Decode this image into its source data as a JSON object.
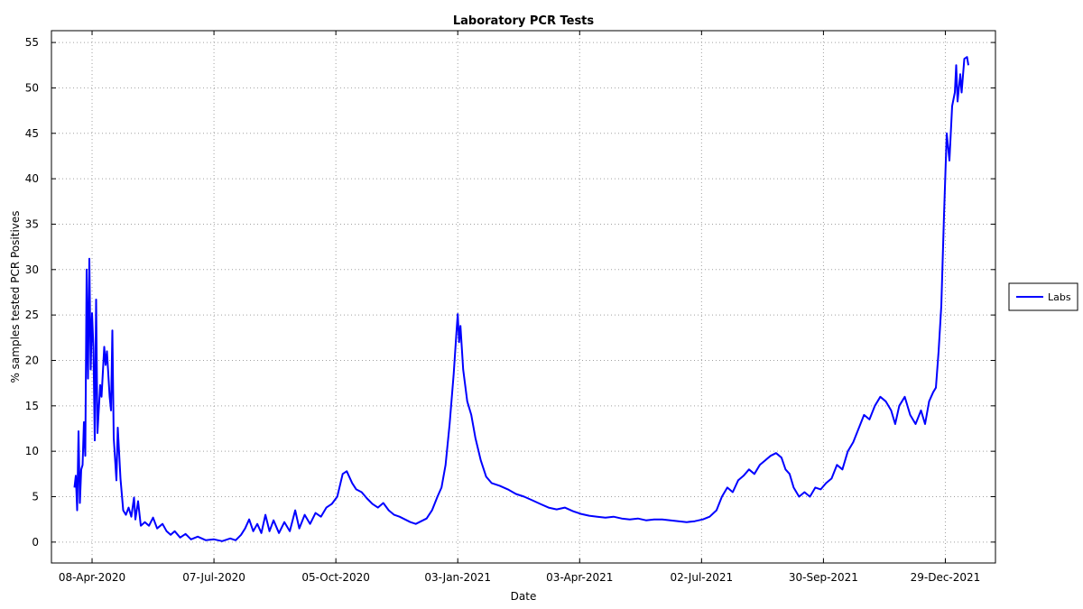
{
  "chart_data": {
    "type": "line",
    "title": "Laboratory PCR Tests",
    "xlabel": "Date",
    "ylabel": "% samples tested PCR Positives",
    "ylim": [
      -2.3,
      56.3
    ],
    "xlim": [
      "2020-03-09",
      "2022-02-04"
    ],
    "grid": true,
    "legend_placement": "right",
    "x_ticks": [
      {
        "date": "2020-04-08",
        "label": "08-Apr-2020"
      },
      {
        "date": "2020-07-07",
        "label": "07-Jul-2020"
      },
      {
        "date": "2020-10-05",
        "label": "05-Oct-2020"
      },
      {
        "date": "2021-01-03",
        "label": "03-Jan-2021"
      },
      {
        "date": "2021-04-03",
        "label": "03-Apr-2021"
      },
      {
        "date": "2021-07-02",
        "label": "02-Jul-2021"
      },
      {
        "date": "2021-09-30",
        "label": "30-Sep-2021"
      },
      {
        "date": "2021-12-29",
        "label": "29-Dec-2021"
      }
    ],
    "y_ticks": [
      0,
      5,
      10,
      15,
      20,
      25,
      30,
      35,
      40,
      45,
      50,
      55
    ],
    "series": [
      {
        "name": "Labs",
        "color": "#0000ff",
        "points": [
          [
            "2020-03-26",
            6.0
          ],
          [
            "2020-03-27",
            7.3
          ],
          [
            "2020-03-28",
            3.5
          ],
          [
            "2020-03-29",
            12.2
          ],
          [
            "2020-03-30",
            4.3
          ],
          [
            "2020-03-31",
            8.0
          ],
          [
            "2020-04-01",
            8.5
          ],
          [
            "2020-04-02",
            13.2
          ],
          [
            "2020-04-03",
            9.5
          ],
          [
            "2020-04-04",
            30.0
          ],
          [
            "2020-04-05",
            18.0
          ],
          [
            "2020-04-06",
            31.2
          ],
          [
            "2020-04-07",
            19.0
          ],
          [
            "2020-04-08",
            25.2
          ],
          [
            "2020-04-09",
            21.5
          ],
          [
            "2020-04-10",
            11.2
          ],
          [
            "2020-04-11",
            26.7
          ],
          [
            "2020-04-12",
            12.0
          ],
          [
            "2020-04-14",
            17.3
          ],
          [
            "2020-04-15",
            16.0
          ],
          [
            "2020-04-17",
            21.5
          ],
          [
            "2020-04-18",
            19.5
          ],
          [
            "2020-04-19",
            21.0
          ],
          [
            "2020-04-21",
            16.0
          ],
          [
            "2020-04-22",
            14.5
          ],
          [
            "2020-04-23",
            23.3
          ],
          [
            "2020-04-24",
            11.5
          ],
          [
            "2020-04-26",
            6.8
          ],
          [
            "2020-04-27",
            12.6
          ],
          [
            "2020-04-29",
            7.0
          ],
          [
            "2020-05-01",
            3.5
          ],
          [
            "2020-05-03",
            3.0
          ],
          [
            "2020-05-05",
            3.8
          ],
          [
            "2020-05-07",
            2.8
          ],
          [
            "2020-05-09",
            4.9
          ],
          [
            "2020-05-10",
            2.5
          ],
          [
            "2020-05-12",
            4.5
          ],
          [
            "2020-05-14",
            1.8
          ],
          [
            "2020-05-17",
            2.2
          ],
          [
            "2020-05-20",
            1.8
          ],
          [
            "2020-05-23",
            2.7
          ],
          [
            "2020-05-26",
            1.5
          ],
          [
            "2020-05-30",
            2.0
          ],
          [
            "2020-06-02",
            1.2
          ],
          [
            "2020-06-05",
            0.8
          ],
          [
            "2020-06-08",
            1.2
          ],
          [
            "2020-06-12",
            0.5
          ],
          [
            "2020-06-16",
            0.9
          ],
          [
            "2020-06-20",
            0.3
          ],
          [
            "2020-06-25",
            0.6
          ],
          [
            "2020-07-01",
            0.2
          ],
          [
            "2020-07-07",
            0.3
          ],
          [
            "2020-07-13",
            0.1
          ],
          [
            "2020-07-19",
            0.4
          ],
          [
            "2020-07-23",
            0.2
          ],
          [
            "2020-07-27",
            0.8
          ],
          [
            "2020-07-30",
            1.5
          ],
          [
            "2020-08-02",
            2.5
          ],
          [
            "2020-08-05",
            1.2
          ],
          [
            "2020-08-08",
            2.0
          ],
          [
            "2020-08-11",
            1.0
          ],
          [
            "2020-08-14",
            3.0
          ],
          [
            "2020-08-17",
            1.2
          ],
          [
            "2020-08-20",
            2.4
          ],
          [
            "2020-08-24",
            1.0
          ],
          [
            "2020-08-28",
            2.2
          ],
          [
            "2020-09-01",
            1.2
          ],
          [
            "2020-09-05",
            3.5
          ],
          [
            "2020-09-08",
            1.5
          ],
          [
            "2020-09-12",
            3.0
          ],
          [
            "2020-09-16",
            2.0
          ],
          [
            "2020-09-20",
            3.2
          ],
          [
            "2020-09-24",
            2.8
          ],
          [
            "2020-09-28",
            3.8
          ],
          [
            "2020-10-02",
            4.2
          ],
          [
            "2020-10-06",
            5.0
          ],
          [
            "2020-10-10",
            7.5
          ],
          [
            "2020-10-13",
            7.8
          ],
          [
            "2020-10-17",
            6.5
          ],
          [
            "2020-10-20",
            5.8
          ],
          [
            "2020-10-24",
            5.5
          ],
          [
            "2020-10-28",
            4.8
          ],
          [
            "2020-11-01",
            4.2
          ],
          [
            "2020-11-05",
            3.8
          ],
          [
            "2020-11-09",
            4.3
          ],
          [
            "2020-11-13",
            3.5
          ],
          [
            "2020-11-17",
            3.0
          ],
          [
            "2020-11-21",
            2.8
          ],
          [
            "2020-11-25",
            2.5
          ],
          [
            "2020-11-29",
            2.2
          ],
          [
            "2020-12-03",
            2.0
          ],
          [
            "2020-12-07",
            2.3
          ],
          [
            "2020-12-11",
            2.6
          ],
          [
            "2020-12-15",
            3.5
          ],
          [
            "2020-12-19",
            5.0
          ],
          [
            "2020-12-22",
            6.0
          ],
          [
            "2020-12-25",
            8.5
          ],
          [
            "2020-12-28",
            13.0
          ],
          [
            "2020-12-31",
            18.5
          ],
          [
            "2021-01-02",
            23.0
          ],
          [
            "2021-01-03",
            25.1
          ],
          [
            "2021-01-04",
            22.0
          ],
          [
            "2021-01-05",
            23.8
          ],
          [
            "2021-01-07",
            19.0
          ],
          [
            "2021-01-10",
            15.5
          ],
          [
            "2021-01-13",
            14.0
          ],
          [
            "2021-01-16",
            11.5
          ],
          [
            "2021-01-20",
            9.0
          ],
          [
            "2021-01-24",
            7.2
          ],
          [
            "2021-01-28",
            6.5
          ],
          [
            "2021-02-03",
            6.2
          ],
          [
            "2021-02-09",
            5.8
          ],
          [
            "2021-02-15",
            5.3
          ],
          [
            "2021-02-21",
            5.0
          ],
          [
            "2021-02-27",
            4.6
          ],
          [
            "2021-03-05",
            4.2
          ],
          [
            "2021-03-11",
            3.8
          ],
          [
            "2021-03-17",
            3.6
          ],
          [
            "2021-03-23",
            3.8
          ],
          [
            "2021-03-29",
            3.4
          ],
          [
            "2021-04-04",
            3.1
          ],
          [
            "2021-04-10",
            2.9
          ],
          [
            "2021-04-16",
            2.8
          ],
          [
            "2021-04-22",
            2.7
          ],
          [
            "2021-04-28",
            2.8
          ],
          [
            "2021-05-04",
            2.6
          ],
          [
            "2021-05-10",
            2.5
          ],
          [
            "2021-05-16",
            2.6
          ],
          [
            "2021-05-22",
            2.4
          ],
          [
            "2021-05-28",
            2.5
          ],
          [
            "2021-06-03",
            2.5
          ],
          [
            "2021-06-09",
            2.4
          ],
          [
            "2021-06-15",
            2.3
          ],
          [
            "2021-06-21",
            2.2
          ],
          [
            "2021-06-27",
            2.3
          ],
          [
            "2021-07-03",
            2.5
          ],
          [
            "2021-07-08",
            2.8
          ],
          [
            "2021-07-13",
            3.5
          ],
          [
            "2021-07-17",
            5.0
          ],
          [
            "2021-07-21",
            6.0
          ],
          [
            "2021-07-25",
            5.5
          ],
          [
            "2021-07-29",
            6.8
          ],
          [
            "2021-08-02",
            7.3
          ],
          [
            "2021-08-06",
            8.0
          ],
          [
            "2021-08-10",
            7.5
          ],
          [
            "2021-08-14",
            8.5
          ],
          [
            "2021-08-18",
            9.0
          ],
          [
            "2021-08-22",
            9.5
          ],
          [
            "2021-08-26",
            9.8
          ],
          [
            "2021-08-30",
            9.3
          ],
          [
            "2021-09-02",
            8.0
          ],
          [
            "2021-09-05",
            7.5
          ],
          [
            "2021-09-08",
            6.0
          ],
          [
            "2021-09-12",
            5.0
          ],
          [
            "2021-09-16",
            5.5
          ],
          [
            "2021-09-20",
            5.0
          ],
          [
            "2021-09-24",
            6.0
          ],
          [
            "2021-09-28",
            5.8
          ],
          [
            "2021-10-02",
            6.5
          ],
          [
            "2021-10-06",
            7.0
          ],
          [
            "2021-10-10",
            8.5
          ],
          [
            "2021-10-14",
            8.0
          ],
          [
            "2021-10-18",
            10.0
          ],
          [
            "2021-10-22",
            11.0
          ],
          [
            "2021-10-26",
            12.5
          ],
          [
            "2021-10-30",
            14.0
          ],
          [
            "2021-11-03",
            13.5
          ],
          [
            "2021-11-07",
            15.0
          ],
          [
            "2021-11-11",
            16.0
          ],
          [
            "2021-11-15",
            15.5
          ],
          [
            "2021-11-19",
            14.5
          ],
          [
            "2021-11-22",
            13.0
          ],
          [
            "2021-11-25",
            15.0
          ],
          [
            "2021-11-29",
            16.0
          ],
          [
            "2021-12-03",
            14.0
          ],
          [
            "2021-12-07",
            13.0
          ],
          [
            "2021-12-11",
            14.5
          ],
          [
            "2021-12-14",
            13.0
          ],
          [
            "2021-12-17",
            15.5
          ],
          [
            "2021-12-20",
            16.5
          ],
          [
            "2021-12-22",
            17.0
          ],
          [
            "2021-12-24",
            21.0
          ],
          [
            "2021-12-26",
            26.0
          ],
          [
            "2021-12-28",
            36.0
          ],
          [
            "2021-12-30",
            45.0
          ],
          [
            "2022-01-01",
            42.0
          ],
          [
            "2022-01-03",
            48.0
          ],
          [
            "2022-01-05",
            49.5
          ],
          [
            "2022-01-06",
            52.5
          ],
          [
            "2022-01-07",
            48.5
          ],
          [
            "2022-01-09",
            51.5
          ],
          [
            "2022-01-10",
            49.5
          ],
          [
            "2022-01-12",
            53.2
          ],
          [
            "2022-01-14",
            53.4
          ],
          [
            "2022-01-15",
            52.5
          ]
        ]
      }
    ]
  }
}
